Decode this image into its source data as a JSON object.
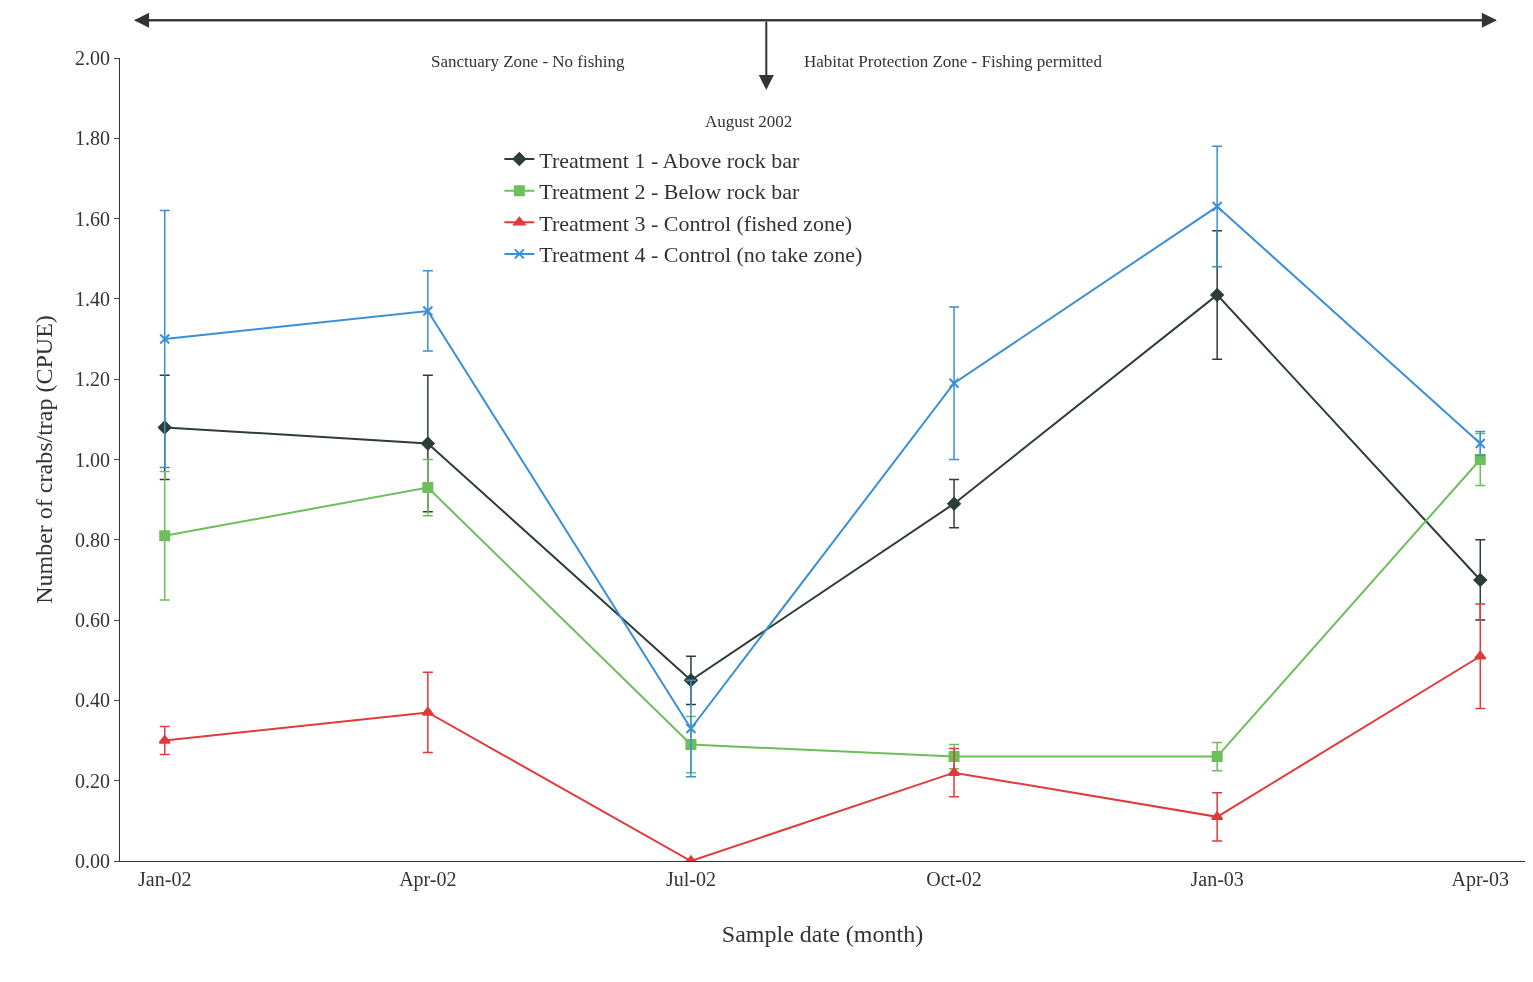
{
  "chart_data": {
    "type": "line",
    "xlabel": "Sample date (month)",
    "ylabel": "Number of crabs/trap (CPUE)",
    "categories": [
      "Jan-02",
      "Apr-02",
      "Jul-02",
      "Oct-02",
      "Jan-03",
      "Apr-03"
    ],
    "ylim": [
      0,
      2
    ],
    "yticks": [
      {
        "value": 0,
        "label": "0.00"
      },
      {
        "value": 0.2,
        "label": "0.20"
      },
      {
        "value": 0.4,
        "label": "0.40"
      },
      {
        "value": 0.6,
        "label": "0.60"
      },
      {
        "value": 0.8,
        "label": "0.80"
      },
      {
        "value": 1.0,
        "label": "1.00"
      },
      {
        "value": 1.2,
        "label": "1.20"
      },
      {
        "value": 1.4,
        "label": "1.40"
      },
      {
        "value": 1.6,
        "label": "1.60"
      },
      {
        "value": 1.8,
        "label": "1.80"
      },
      {
        "value": 2.0,
        "label": "2.00"
      }
    ],
    "legend": "top",
    "line_style": "solid",
    "series": [
      {
        "name": "Treatment 1 - Above rock bar",
        "color": "#2d3e35",
        "marker": "diamond",
        "values": [
          1.08,
          1.04,
          0.45,
          0.89,
          1.41,
          0.7
        ],
        "errors": [
          0.13,
          0.17,
          0.06,
          0.06,
          0.16,
          0.1
        ]
      },
      {
        "name": "Treatment 2 - Below rock bar",
        "color": "#6cbf5a",
        "marker": "square",
        "values": [
          0.81,
          0.93,
          0.29,
          0.26,
          0.26,
          1.0
        ],
        "errors": [
          0.16,
          0.07,
          0.07,
          0.03,
          0.035,
          0.065
        ]
      },
      {
        "name": "Treatment 3 - Control (fished zone)",
        "color": "#e03a3a",
        "marker": "triangle",
        "values": [
          0.3,
          0.37,
          0.0,
          0.22,
          0.11,
          0.51
        ],
        "errors": [
          0.035,
          0.1,
          0,
          0.06,
          0.06,
          0.13
        ]
      },
      {
        "name": "Treatment 4 - Control (no take zone)",
        "color": "#3a8fd6",
        "marker": "cross",
        "values": [
          1.3,
          1.37,
          0.33,
          1.19,
          1.63,
          1.04
        ],
        "errors": [
          0.32,
          0.1,
          0.12,
          0.19,
          0.15,
          0.03
        ]
      }
    ],
    "annotations": [
      "Sanctuary Zone - No fishing",
      "Habitat Protection Zone - Fishing permitted",
      "August 2002"
    ]
  }
}
